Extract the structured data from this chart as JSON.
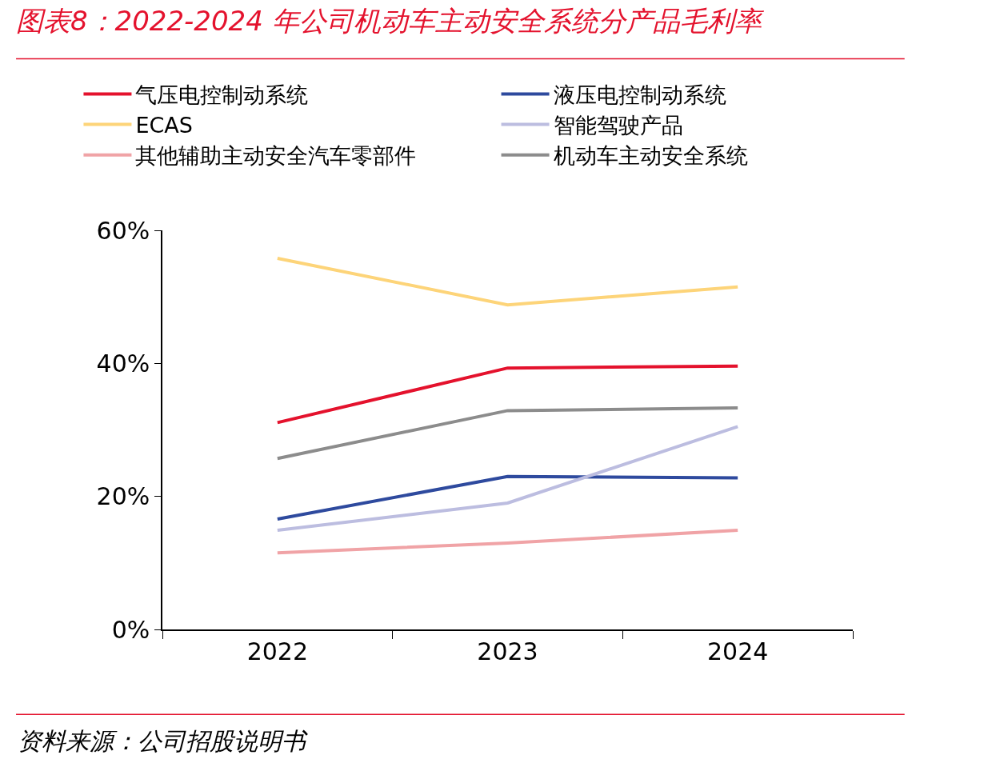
{
  "chart_data": {
    "type": "line",
    "title": "图表8：2022-2024 年公司机动车主动安全系统分产品毛利率",
    "categories": [
      "2022",
      "2023",
      "2024"
    ],
    "series": [
      {
        "name": "气压电控制动系统",
        "color": "#e4122d",
        "values": [
          31.1,
          39.3,
          39.6
        ]
      },
      {
        "name": "液压电控制动系统",
        "color": "#2e4a9e",
        "values": [
          16.6,
          23.0,
          22.8
        ]
      },
      {
        "name": "ECAS",
        "color": "#fdd479",
        "values": [
          55.8,
          48.8,
          51.5
        ]
      },
      {
        "name": "智能驾驶产品",
        "color": "#bcbde0",
        "values": [
          14.9,
          19.0,
          30.5
        ]
      },
      {
        "name": "其他辅助主动安全汽车零部件",
        "color": "#f0a3a6",
        "values": [
          11.5,
          13.0,
          14.9
        ]
      },
      {
        "name": "机动车主动安全系统",
        "color": "#8c8c8c",
        "values": [
          25.7,
          32.9,
          33.3
        ]
      }
    ],
    "ylim": [
      0,
      60
    ],
    "yticks": [
      {
        "value": 0,
        "label": "0%"
      },
      {
        "value": 20,
        "label": "20%"
      },
      {
        "value": 40,
        "label": "40%"
      },
      {
        "value": 60,
        "label": "60%"
      }
    ],
    "legend": "top",
    "marker": "none",
    "line_style": "solid",
    "annotations": [
      "资料来源：公司招股说明书"
    ]
  }
}
